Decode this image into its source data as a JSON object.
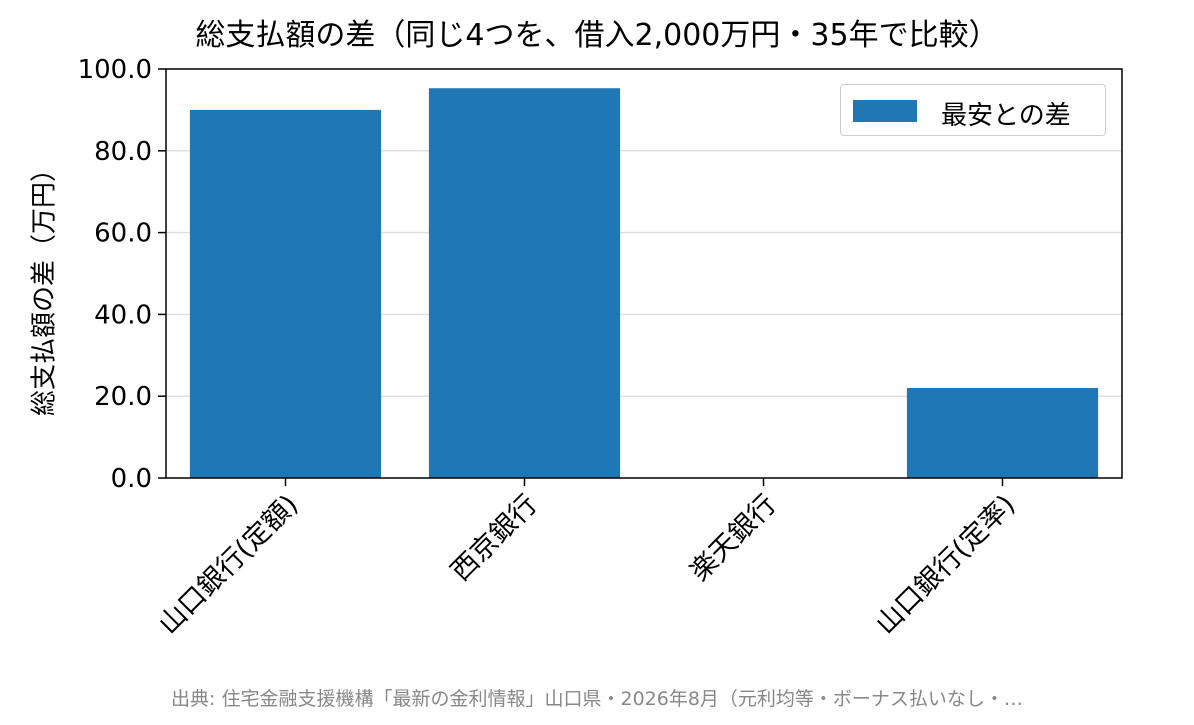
{
  "title": "総支払額の差（同じ4つを、借入2,000万円・35年で比較）",
  "source": "出典: 住宅金融支援機構「最新の金利情報」山口県・2026年8月（元利均等・ボーナス払いなし・…",
  "colors": {
    "bar": "#1f77b4",
    "grid": "#e0e0e0",
    "axis": "#000000",
    "source": "#888888"
  },
  "chart_data": {
    "type": "bar",
    "title": "総支払額の差（同じ4つを、借入2,000万円・35年で比較）",
    "xlabel": "",
    "ylabel": "総支払額の差（万円）",
    "categories": [
      "山口銀行(定額)",
      "西京銀行",
      "楽天銀行",
      "山口銀行(定率)"
    ],
    "series": [
      {
        "name": "最安との差",
        "values": [
          90.0,
          95.3,
          0.0,
          22.0
        ]
      }
    ],
    "ylim": [
      0,
      100
    ],
    "yticks": [
      "0.0",
      "20.0",
      "40.0",
      "60.0",
      "80.0",
      "100.0"
    ],
    "grid": "horizontal",
    "legend": "top-right"
  }
}
